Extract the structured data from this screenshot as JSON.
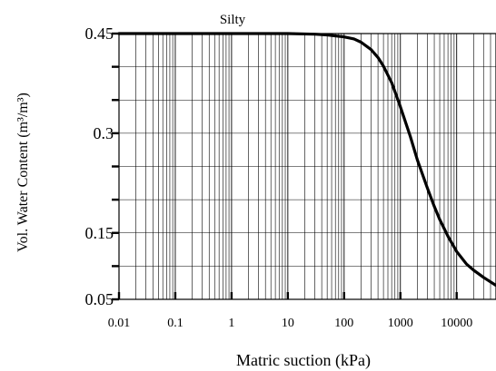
{
  "chart_data": {
    "type": "line",
    "title": "Silty",
    "xlabel": "Matric suction (kPa)",
    "ylabel": "Vol. Water Content (m³/m³)",
    "x_scale": "log",
    "xlim": [
      0.01,
      50000
    ],
    "ylim": [
      0.05,
      0.45
    ],
    "grid": true,
    "legend": "none",
    "x_ticks": [
      {
        "value": 0.01,
        "label": "0.01"
      },
      {
        "value": 0.1,
        "label": "0.1"
      },
      {
        "value": 1,
        "label": "1"
      },
      {
        "value": 10,
        "label": "10"
      },
      {
        "value": 100,
        "label": "100"
      },
      {
        "value": 1000,
        "label": "1000"
      },
      {
        "value": 10000,
        "label": "10000"
      }
    ],
    "y_ticks": [
      {
        "value": 0.05,
        "label": "0.05"
      },
      {
        "value": 0.15,
        "label": "0.15"
      },
      {
        "value": 0.3,
        "label": "0.3"
      },
      {
        "value": 0.45,
        "label": "0.45"
      }
    ],
    "series": [
      {
        "x": [
          0.01,
          0.1,
          1,
          10,
          30,
          50,
          100,
          150,
          200,
          300,
          400,
          500,
          700,
          1000,
          1500,
          2000,
          3000,
          4000,
          5000,
          7000,
          10000,
          15000,
          20000,
          30000,
          50000
        ],
        "y": [
          0.45,
          0.45,
          0.45,
          0.45,
          0.449,
          0.448,
          0.445,
          0.442,
          0.437,
          0.426,
          0.414,
          0.401,
          0.376,
          0.34,
          0.295,
          0.26,
          0.218,
          0.19,
          0.17,
          0.145,
          0.122,
          0.103,
          0.094,
          0.083,
          0.071
        ],
        "color": "#000000"
      }
    ]
  }
}
